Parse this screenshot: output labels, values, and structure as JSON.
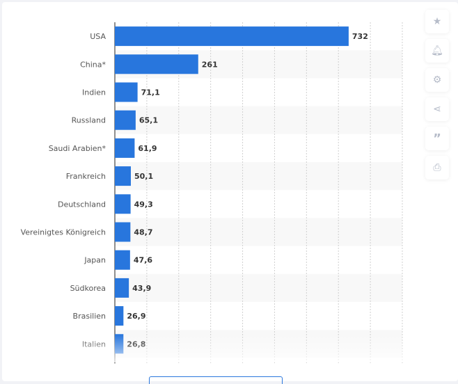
{
  "chart_data": {
    "type": "bar",
    "orientation": "horizontal",
    "categories": [
      "USA",
      "China*",
      "Indien",
      "Russland",
      "Saudi Arabien*",
      "Frankreich",
      "Deutschland",
      "Vereinigtes Königreich",
      "Japan",
      "Südkorea",
      "Brasilien",
      "Italien"
    ],
    "values": [
      732,
      261,
      71.1,
      65.1,
      61.9,
      50.1,
      49.3,
      48.7,
      47.6,
      43.9,
      26.9,
      26.8
    ],
    "value_labels": [
      "732",
      "261",
      "71,1",
      "65,1",
      "61,9",
      "50,1",
      "49,3",
      "48,7",
      "47,6",
      "43,9",
      "26,9",
      "26,8"
    ],
    "xlim": [
      0,
      900
    ],
    "grid": true,
    "bar_color": "#2876dd"
  },
  "sidebar": {
    "icons": [
      "star-icon",
      "bell-icon",
      "gear-icon",
      "share-icon",
      "quote-icon",
      "print-icon"
    ]
  }
}
